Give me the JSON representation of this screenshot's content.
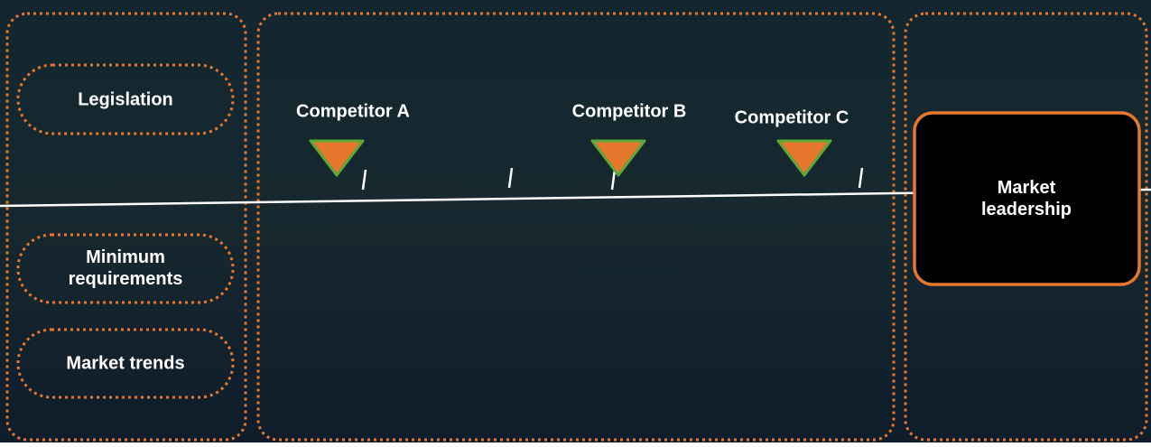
{
  "left_factors": [
    "Legislation",
    "Minimum requirements",
    "Market trends"
  ],
  "competitors": [
    "Competitor A",
    "Competitor B",
    "Competitor C"
  ],
  "goal": "Market leadership"
}
